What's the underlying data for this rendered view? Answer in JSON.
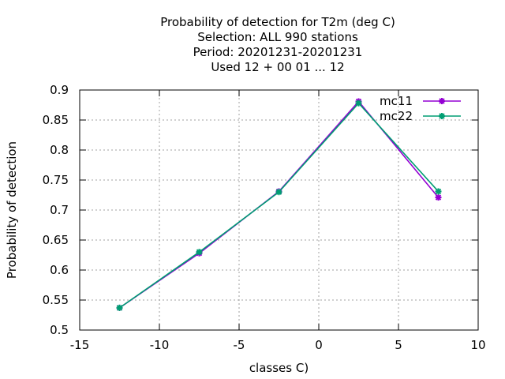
{
  "chart_data": {
    "type": "line",
    "title_lines": [
      "Probability of detection  for T2m (deg C)",
      "Selection: ALL    990 stations",
      "Period: 20201231-20201231",
      "Used  12 + 00 01 ... 12"
    ],
    "xlabel": "classes C)",
    "ylabel": "Probability of detection",
    "xlim": [
      -15,
      10
    ],
    "ylim": [
      0.5,
      0.9
    ],
    "xticks": [
      -15,
      -10,
      -5,
      0,
      5,
      10
    ],
    "xtick_labels": [
      "-15",
      "-10",
      "-5",
      "0",
      "5",
      "10"
    ],
    "yticks": [
      0.5,
      0.55,
      0.6,
      0.65,
      0.7,
      0.75,
      0.8,
      0.85,
      0.9
    ],
    "ytick_labels": [
      "0.5",
      "0.55",
      "0.6",
      "0.65",
      "0.7",
      "0.75",
      "0.8",
      "0.85",
      "0.9"
    ],
    "grid": true,
    "legend_position": "top-right",
    "series": [
      {
        "name": "mc11",
        "color": "#9400d3",
        "x": [
          -12.5,
          -7.5,
          -2.5,
          2.5,
          7.5
        ],
        "y": [
          0.537,
          0.628,
          0.731,
          0.881,
          0.721
        ]
      },
      {
        "name": "mc22",
        "color": "#009e73",
        "x": [
          -12.5,
          -7.5,
          -2.5,
          2.5,
          7.5
        ],
        "y": [
          0.537,
          0.63,
          0.73,
          0.878,
          0.731
        ]
      }
    ]
  }
}
